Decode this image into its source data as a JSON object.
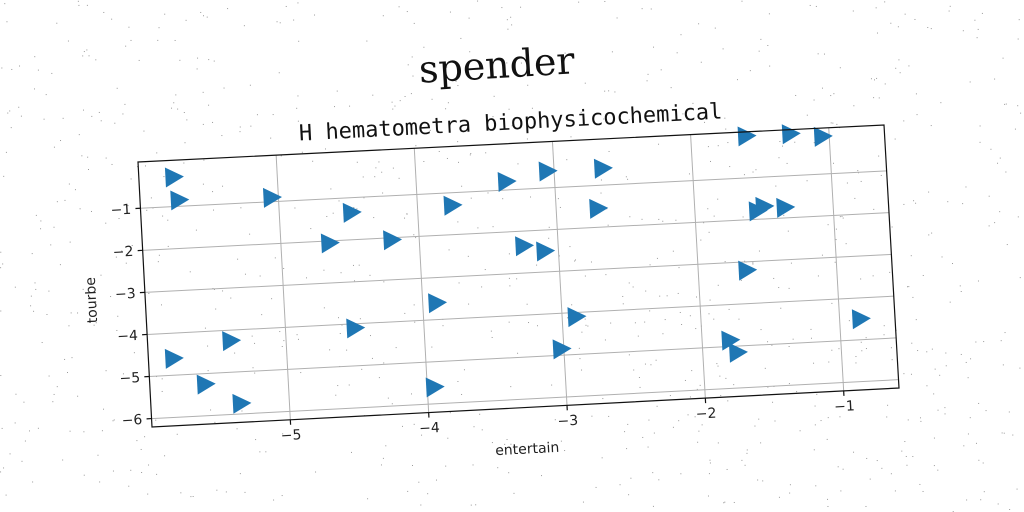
{
  "suptitle": "spender",
  "chart_data": {
    "type": "scatter",
    "title": "H hematometra biophysicochemical",
    "xlabel": "entertain",
    "ylabel": "tourbe",
    "xlim": [
      -6.0,
      -0.6
    ],
    "ylim": [
      -6.2,
      0.1
    ],
    "xticks": [
      -5,
      -4,
      -3,
      -2,
      -1
    ],
    "yticks": [
      -6,
      -5,
      -4,
      -3,
      -2,
      -1
    ],
    "xtick_labels": [
      "−5",
      "−4",
      "−3",
      "−2",
      "−1"
    ],
    "ytick_labels": [
      "−6",
      "−5",
      "−4",
      "−3",
      "−2",
      "−1"
    ],
    "grid": true,
    "marker": "triangle-right",
    "color": "#1f77b4",
    "series": [
      {
        "points": [
          [
            -5.75,
            -0.3
          ],
          [
            -5.72,
            -0.85
          ],
          [
            -5.05,
            -0.9
          ],
          [
            -4.48,
            -1.35
          ],
          [
            -3.75,
            -1.3
          ],
          [
            -4.65,
            -2.05
          ],
          [
            -4.2,
            -2.05
          ],
          [
            -3.35,
            -0.8
          ],
          [
            -3.05,
            -0.6
          ],
          [
            -2.65,
            -0.6
          ],
          [
            -2.7,
            -1.55
          ],
          [
            -1.6,
            0.0
          ],
          [
            -1.28,
            0.0
          ],
          [
            -1.05,
            -0.1
          ],
          [
            -1.55,
            -1.8
          ],
          [
            -1.5,
            -1.7
          ],
          [
            -1.35,
            -1.75
          ],
          [
            -1.65,
            -3.2
          ],
          [
            -3.25,
            -2.35
          ],
          [
            -3.1,
            -2.5
          ],
          [
            -3.9,
            -3.6
          ],
          [
            -2.9,
            -4.1
          ],
          [
            -4.5,
            -4.1
          ],
          [
            -5.4,
            -4.25
          ],
          [
            -5.82,
            -4.6
          ],
          [
            -5.6,
            -5.25
          ],
          [
            -5.35,
            -5.75
          ],
          [
            -3.02,
            -4.85
          ],
          [
            -1.8,
            -4.85
          ],
          [
            -1.75,
            -5.15
          ],
          [
            -3.95,
            -5.6
          ],
          [
            -0.85,
            -4.5
          ]
        ]
      }
    ]
  }
}
